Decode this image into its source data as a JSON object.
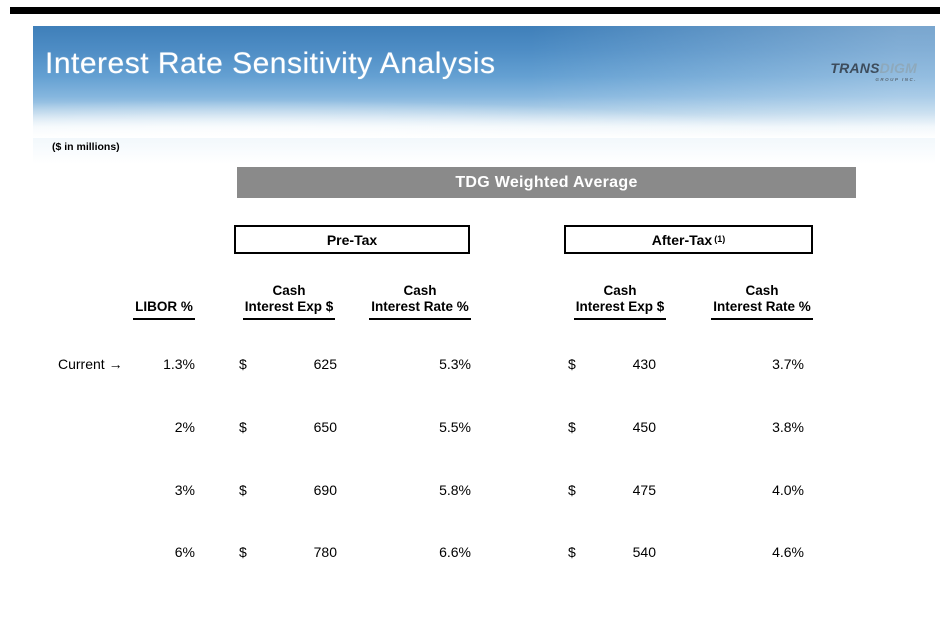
{
  "slide": {
    "title": "Interest Rate Sensitivity Analysis",
    "units_note": "($ in millions)",
    "colors": {
      "sky_top": "#3f7fb9",
      "sky_mid": "#85b6de",
      "banner_bg": "#8a8a8a",
      "title_text": "#ffffff",
      "body_text": "#000000",
      "logo_trans": "#3d4c5c",
      "logo_digm": "#8ea9bc"
    }
  },
  "logo": {
    "trans": "TRANS",
    "digm": "DIGM",
    "sub": "GROUP INC."
  },
  "banner": {
    "label": "TDG Weighted Average"
  },
  "groups": {
    "pretax": "Pre-Tax",
    "aftertax": "After-Tax",
    "aftertax_footnote": "(1)"
  },
  "table": {
    "headers": {
      "libor": "LIBOR %",
      "cash": "Cash",
      "interest_exp": "Interest Exp $",
      "interest_rate": "Interest Rate %"
    },
    "dollar_sign": "$",
    "current_label": "Current →",
    "rows": [
      {
        "libor": "1.3%",
        "pre_exp": "625",
        "pre_rate": "5.3%",
        "post_exp": "430",
        "post_rate": "3.7%"
      },
      {
        "libor": "2%",
        "pre_exp": "650",
        "pre_rate": "5.5%",
        "post_exp": "450",
        "post_rate": "3.8%"
      },
      {
        "libor": "3%",
        "pre_exp": "690",
        "pre_rate": "5.8%",
        "post_exp": "475",
        "post_rate": "4.0%"
      },
      {
        "libor": "6%",
        "pre_exp": "780",
        "pre_rate": "6.6%",
        "post_exp": "540",
        "post_rate": "4.6%"
      }
    ]
  }
}
